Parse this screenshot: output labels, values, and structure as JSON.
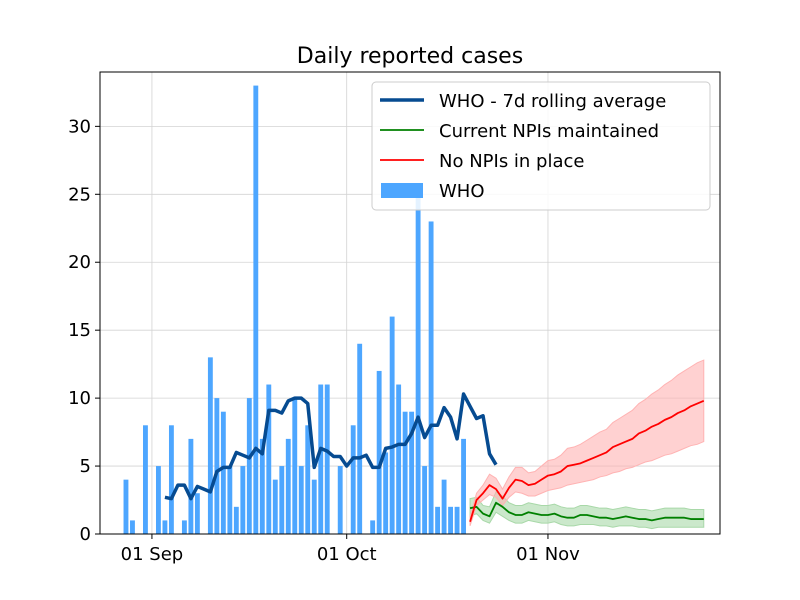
{
  "chart_data": {
    "type": "bar+line",
    "title": "Daily reported cases",
    "xlabel": "",
    "ylabel": "",
    "x_start_date": "2020-08-28",
    "ylim": [
      0,
      34
    ],
    "y_ticks": [
      0,
      5,
      10,
      15,
      20,
      25,
      30
    ],
    "x_ticks": [
      {
        "date": "2020-09-01",
        "label": "01 Sep"
      },
      {
        "date": "2020-10-01",
        "label": "01 Oct"
      },
      {
        "date": "2020-11-01",
        "label": "01 Nov"
      }
    ],
    "grid": true,
    "legend_placement": "upper-right",
    "colors": {
      "who_bars": "#4da6ff",
      "rolling_avg": "#064b91",
      "maintained": "#008000",
      "maintained_band": "#a8d8a8",
      "no_npi": "#ff0000",
      "no_npi_band": "#ffb3b3"
    },
    "legend": [
      {
        "label": "WHO - 7d rolling average",
        "kind": "line-thick",
        "color_key": "rolling_avg"
      },
      {
        "label": "Current NPIs maintained",
        "kind": "line",
        "color_key": "maintained"
      },
      {
        "label": "No NPIs in place",
        "kind": "line",
        "color_key": "no_npi"
      },
      {
        "label": "WHO",
        "kind": "patch",
        "color_key": "who_bars"
      }
    ],
    "series": [
      {
        "name": "WHO",
        "type": "bar",
        "x_offset_days": [
          0,
          1,
          3,
          5,
          6,
          7,
          9,
          10,
          11,
          13,
          14,
          15,
          16,
          17,
          18,
          19,
          20,
          21,
          22,
          23,
          24,
          25,
          26,
          27,
          28,
          29,
          30,
          31,
          33,
          35,
          36,
          38,
          39,
          40,
          41,
          42,
          43,
          44,
          45,
          46,
          47,
          48,
          49,
          50,
          51,
          52,
          53,
          54,
          55,
          56,
          57
        ],
        "values": [
          4,
          1,
          8,
          5,
          1,
          8,
          1,
          7,
          3,
          13,
          10,
          9,
          5,
          2,
          5,
          10,
          33,
          7,
          11,
          4,
          5,
          7,
          10,
          5,
          8,
          4,
          11,
          11,
          5,
          8,
          14,
          1,
          12,
          6,
          16,
          11,
          9,
          9,
          25,
          5,
          23,
          2,
          4,
          2,
          2,
          7,
          0,
          0,
          0,
          0,
          0
        ]
      },
      {
        "name": "WHO - 7d rolling average",
        "type": "line",
        "x_offset_days": [
          6,
          7,
          8,
          9,
          10,
          11,
          12,
          13,
          14,
          15,
          16,
          17,
          18,
          19,
          20,
          21,
          22,
          23,
          24,
          25,
          26,
          27,
          28,
          29,
          30,
          31,
          32,
          33,
          34,
          35,
          36,
          37,
          38,
          39,
          40,
          41,
          42,
          43,
          44,
          45,
          46,
          47,
          48,
          49,
          50,
          51,
          52,
          53,
          54,
          55,
          56,
          57
        ],
        "values": [
          2.7,
          2.6,
          3.6,
          3.6,
          2.6,
          3.5,
          3.3,
          3.1,
          4.6,
          4.9,
          4.9,
          6.0,
          5.8,
          5.6,
          6.3,
          5.9,
          9.1,
          9.1,
          8.9,
          9.8,
          10.0,
          10.0,
          9.6,
          4.9,
          6.3,
          6.1,
          5.7,
          5.7,
          5.0,
          5.6,
          5.6,
          5.8,
          4.9,
          4.9,
          6.3,
          6.4,
          6.6,
          6.6,
          7.4,
          8.6,
          7.1,
          8.0,
          8.0,
          9.3,
          8.6,
          7.0,
          10.3,
          9.4,
          8.5,
          8.7,
          5.9,
          5.1
        ]
      },
      {
        "name": "Current NPIs maintained",
        "type": "line",
        "x_offset_days": [
          53,
          54,
          55,
          56,
          57,
          58,
          59,
          60,
          61,
          62,
          63,
          64,
          65,
          66,
          67,
          68,
          69,
          70,
          71,
          72,
          73,
          74,
          75,
          76,
          77,
          78,
          79,
          80,
          81,
          82,
          83,
          84,
          85,
          86,
          87,
          88,
          89
        ],
        "values": [
          1.9,
          2.0,
          1.5,
          1.3,
          2.3,
          2.0,
          1.6,
          1.4,
          1.4,
          1.6,
          1.5,
          1.4,
          1.4,
          1.5,
          1.3,
          1.2,
          1.2,
          1.4,
          1.4,
          1.3,
          1.2,
          1.2,
          1.1,
          1.2,
          1.3,
          1.2,
          1.1,
          1.1,
          1.0,
          1.1,
          1.2,
          1.2,
          1.2,
          1.2,
          1.1,
          1.1,
          1.1
        ],
        "lower": [
          1.3,
          1.5,
          1.0,
          0.8,
          1.6,
          1.3,
          1.0,
          0.8,
          0.8,
          1.0,
          0.9,
          0.8,
          0.8,
          0.9,
          0.7,
          0.6,
          0.6,
          0.7,
          0.7,
          0.7,
          0.6,
          0.6,
          0.5,
          0.6,
          0.6,
          0.6,
          0.5,
          0.5,
          0.4,
          0.5,
          0.5,
          0.5,
          0.5,
          0.5,
          0.5,
          0.5,
          0.5
        ],
        "upper": [
          2.6,
          2.7,
          2.1,
          2.0,
          3.1,
          2.8,
          2.3,
          2.1,
          2.1,
          2.3,
          2.2,
          2.1,
          2.1,
          2.2,
          2.0,
          1.9,
          1.9,
          2.1,
          2.1,
          2.0,
          1.9,
          1.9,
          1.8,
          1.9,
          2.0,
          1.9,
          1.8,
          1.8,
          1.7,
          1.8,
          1.9,
          1.9,
          1.9,
          1.9,
          1.8,
          1.8,
          1.8
        ]
      },
      {
        "name": "No NPIs in place",
        "type": "line",
        "x_offset_days": [
          53,
          54,
          55,
          56,
          57,
          58,
          59,
          60,
          61,
          62,
          63,
          64,
          65,
          66,
          67,
          68,
          69,
          70,
          71,
          72,
          73,
          74,
          75,
          76,
          77,
          78,
          79,
          80,
          81,
          82,
          83,
          84,
          85,
          86,
          87,
          88,
          89
        ],
        "values": [
          0.9,
          2.5,
          3.0,
          3.6,
          3.3,
          2.6,
          3.4,
          4.0,
          3.9,
          3.6,
          3.7,
          4.0,
          4.3,
          4.4,
          4.6,
          5.0,
          5.1,
          5.2,
          5.4,
          5.6,
          5.8,
          6.0,
          6.4,
          6.6,
          6.8,
          7.0,
          7.4,
          7.6,
          7.9,
          8.1,
          8.4,
          8.6,
          8.9,
          9.1,
          9.4,
          9.6,
          9.8
        ],
        "lower": [
          0.6,
          2.1,
          2.5,
          2.9,
          2.7,
          2.1,
          2.7,
          3.1,
          3.0,
          2.8,
          2.8,
          3.0,
          3.2,
          3.3,
          3.4,
          3.6,
          3.7,
          3.8,
          3.9,
          4.0,
          4.2,
          4.3,
          4.5,
          4.6,
          4.8,
          4.9,
          5.1,
          5.3,
          5.4,
          5.6,
          5.8,
          5.9,
          6.1,
          6.3,
          6.5,
          6.6,
          6.8
        ],
        "upper": [
          1.3,
          3.0,
          3.6,
          4.4,
          4.1,
          3.3,
          4.2,
          4.9,
          4.9,
          4.5,
          4.6,
          5.0,
          5.4,
          5.5,
          5.8,
          6.3,
          6.4,
          6.6,
          6.9,
          7.2,
          7.5,
          7.7,
          8.2,
          8.5,
          8.8,
          9.1,
          9.6,
          9.9,
          10.3,
          10.6,
          11.0,
          11.3,
          11.7,
          12.0,
          12.3,
          12.6,
          12.8
        ]
      }
    ]
  }
}
